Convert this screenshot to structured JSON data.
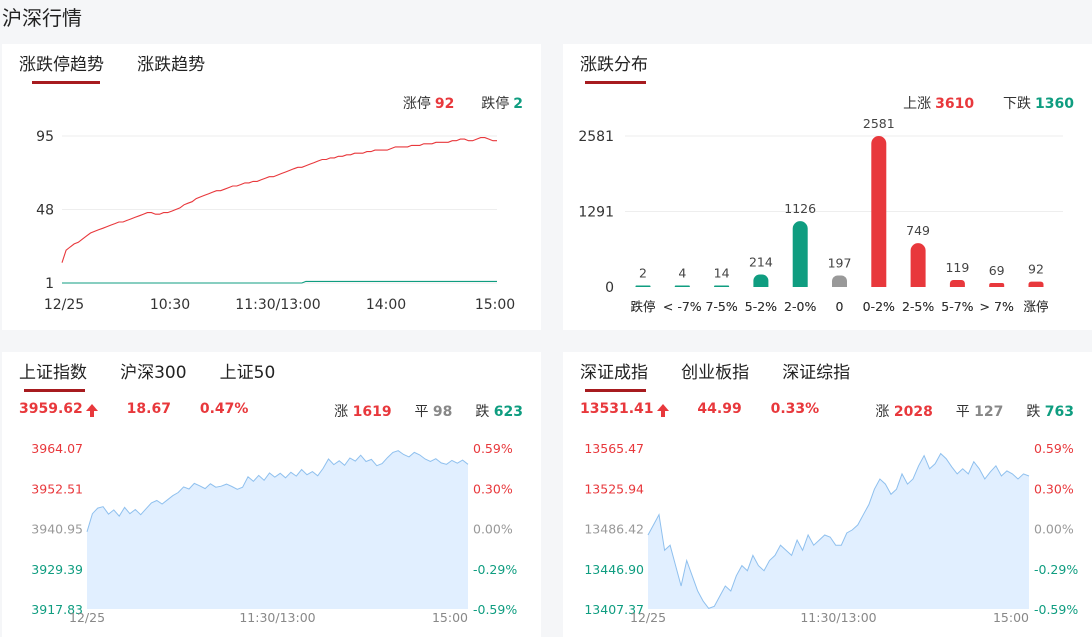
{
  "page": {
    "title": "沪深行情"
  },
  "limit_panel": {
    "tabs": [
      {
        "label": "涨跌停趋势",
        "active": true
      },
      {
        "label": "涨跌趋势",
        "active": false
      }
    ],
    "limit_up_label": "涨停",
    "limit_up_value": "92",
    "limit_down_label": "跌停",
    "limit_down_value": "2"
  },
  "dist_panel": {
    "tabs": [
      {
        "label": "涨跌分布",
        "active": true
      }
    ],
    "up_label": "上涨",
    "up_value": "3610",
    "down_label": "下跌",
    "down_value": "1360"
  },
  "sh_panel": {
    "tabs": [
      {
        "label": "上证指数",
        "active": true
      },
      {
        "label": "沪深300",
        "active": false
      },
      {
        "label": "上证50",
        "active": false
      }
    ],
    "price": "3959.62",
    "change": "18.67",
    "change_pct": "0.47%",
    "up_label": "涨",
    "up_value": "1619",
    "flat_label": "平",
    "flat_value": "98",
    "down_label": "跌",
    "down_value": "623"
  },
  "sz_panel": {
    "tabs": [
      {
        "label": "深证成指",
        "active": true
      },
      {
        "label": "创业板指",
        "active": false
      },
      {
        "label": "深证综指",
        "active": false
      }
    ],
    "price": "13531.41",
    "change": "44.99",
    "change_pct": "0.33%",
    "up_label": "涨",
    "up_value": "2028",
    "flat_label": "平",
    "flat_value": "127",
    "down_label": "跌",
    "down_value": "763"
  },
  "colors": {
    "up": "#e8383c",
    "down": "#0f9d80",
    "flat": "#999999",
    "accent": "#a71b1f",
    "area": "#e1efff",
    "area_line": "#8fc0ee"
  },
  "chart_data": [
    {
      "id": "limit_trend",
      "type": "line",
      "x_ticks": [
        "12/25",
        "10:30",
        "11:30/13:00",
        "14:00",
        "15:00"
      ],
      "y_ticks": [
        "1",
        "48",
        "95"
      ],
      "ylim": [
        1,
        95
      ],
      "series": [
        {
          "color": "#e8383c",
          "values": [
            14,
            22,
            24,
            26,
            27,
            29,
            31,
            33,
            34,
            35,
            36,
            37,
            38,
            39,
            40,
            40,
            41,
            42,
            43,
            44,
            45,
            46,
            46,
            45,
            45,
            46,
            46,
            47,
            48,
            49,
            51,
            52,
            53,
            55,
            56,
            57,
            58,
            59,
            60,
            60,
            61,
            62,
            63,
            63,
            64,
            65,
            65,
            66,
            66,
            67,
            68,
            69,
            69,
            70,
            71,
            72,
            73,
            74,
            75,
            75,
            76,
            77,
            78,
            79,
            80,
            80,
            81,
            81,
            82,
            82,
            83,
            83,
            84,
            84,
            84,
            85,
            85,
            86,
            86,
            86,
            86,
            87,
            88,
            88,
            88,
            88,
            89,
            89,
            89,
            90,
            90,
            90,
            91,
            91,
            91,
            91,
            92,
            92,
            93,
            93,
            92,
            92,
            93,
            94,
            94,
            93,
            92,
            92
          ]
        },
        {
          "color": "#0f9d80",
          "values": [
            1,
            1,
            1,
            1,
            1,
            1,
            1,
            1,
            1,
            1,
            1,
            1,
            1,
            1,
            1,
            1,
            1,
            1,
            1,
            1,
            1,
            1,
            1,
            1,
            1,
            1,
            1,
            1,
            1,
            1,
            1,
            1,
            1,
            1,
            1,
            1,
            1,
            1,
            1,
            1,
            1,
            1,
            1,
            1,
            1,
            1,
            1,
            1,
            1,
            1,
            1,
            1,
            1,
            1,
            1,
            1,
            1,
            1,
            1,
            1,
            2,
            2,
            2,
            2,
            2,
            2,
            2,
            2,
            2,
            2,
            2,
            2,
            2,
            2,
            2,
            2,
            2,
            2,
            2,
            2,
            2,
            2,
            2,
            2,
            2,
            2,
            2,
            2,
            2,
            2,
            2,
            2,
            2,
            2,
            2,
            2,
            2,
            2,
            2,
            2,
            2,
            2,
            2,
            2,
            2,
            2,
            2,
            2
          ]
        }
      ]
    },
    {
      "id": "distribution",
      "type": "bar",
      "categories": [
        "跌停",
        "< -7%",
        "7-5%",
        "5-2%",
        "2-0%",
        "0",
        "0-2%",
        "2-5%",
        "5-7%",
        "> 7%",
        "涨停"
      ],
      "values": [
        2,
        4,
        14,
        214,
        1126,
        197,
        2581,
        749,
        119,
        69,
        92
      ],
      "colors": [
        "#0f9d80",
        "#0f9d80",
        "#0f9d80",
        "#0f9d80",
        "#0f9d80",
        "#999999",
        "#e8383c",
        "#e8383c",
        "#e8383c",
        "#e8383c",
        "#e8383c"
      ],
      "y_ticks": [
        "0",
        "1291",
        "2581"
      ],
      "ylim": [
        0,
        2581
      ]
    },
    {
      "id": "sh_index",
      "type": "area",
      "x_ticks": [
        "12/25",
        "11:30/13:00",
        "15:00"
      ],
      "y_ticks": [
        "3964.07",
        "3952.51",
        "3940.95",
        "3929.39",
        "3917.83"
      ],
      "pct_ticks": [
        "0.59%",
        "0.30%",
        "0.00%",
        "-0.29%",
        "-0.59%"
      ],
      "ylim": [
        3917.83,
        3964.07
      ],
      "values": [
        3940.0,
        3945.2,
        3946.8,
        3947.2,
        3945.1,
        3946.3,
        3944.5,
        3947.0,
        3945.2,
        3946.4,
        3944.9,
        3946.6,
        3948.3,
        3949.0,
        3948.0,
        3949.2,
        3950.4,
        3951.3,
        3952.9,
        3952.3,
        3953.9,
        3953.2,
        3952.4,
        3953.8,
        3952.8,
        3953.1,
        3953.7,
        3953.0,
        3952.2,
        3952.8,
        3955.8,
        3954.5,
        3956.2,
        3954.8,
        3956.9,
        3955.7,
        3956.8,
        3955.5,
        3957.1,
        3956.0,
        3957.9,
        3956.4,
        3957.3,
        3956.1,
        3958.2,
        3960.9,
        3959.3,
        3960.4,
        3959.1,
        3961.2,
        3960.3,
        3962.0,
        3960.2,
        3960.8,
        3959.0,
        3959.6,
        3961.3,
        3962.8,
        3963.3,
        3962.2,
        3961.5,
        3962.8,
        3962.1,
        3960.9,
        3960.2,
        3961.0,
        3959.8,
        3959.4,
        3960.5,
        3959.7,
        3960.6,
        3959.4
      ]
    },
    {
      "id": "sz_index",
      "type": "area",
      "x_ticks": [
        "12/25",
        "11:30/13:00",
        "15:00"
      ],
      "y_ticks": [
        "13565.47",
        "13525.94",
        "13486.42",
        "13446.90",
        "13407.37"
      ],
      "pct_ticks": [
        "0.59%",
        "0.30%",
        "0.00%",
        "-0.29%",
        "-0.59%"
      ],
      "ylim": [
        13407.37,
        13565.47
      ],
      "values": [
        13480,
        13490,
        13500,
        13465,
        13470,
        13450,
        13430,
        13455,
        13440,
        13425,
        13415,
        13408,
        13410,
        13420,
        13430,
        13425,
        13440,
        13450,
        13445,
        13460,
        13450,
        13445,
        13455,
        13460,
        13470,
        13465,
        13460,
        13475,
        13465,
        13480,
        13470,
        13475,
        13480,
        13478,
        13470,
        13470,
        13482,
        13485,
        13490,
        13500,
        13510,
        13525,
        13535,
        13530,
        13520,
        13525,
        13540,
        13530,
        13535,
        13548,
        13558,
        13545,
        13550,
        13560,
        13555,
        13547,
        13540,
        13545,
        13540,
        13552,
        13545,
        13535,
        13542,
        13548,
        13538,
        13543,
        13540,
        13535,
        13540,
        13538
      ]
    }
  ]
}
